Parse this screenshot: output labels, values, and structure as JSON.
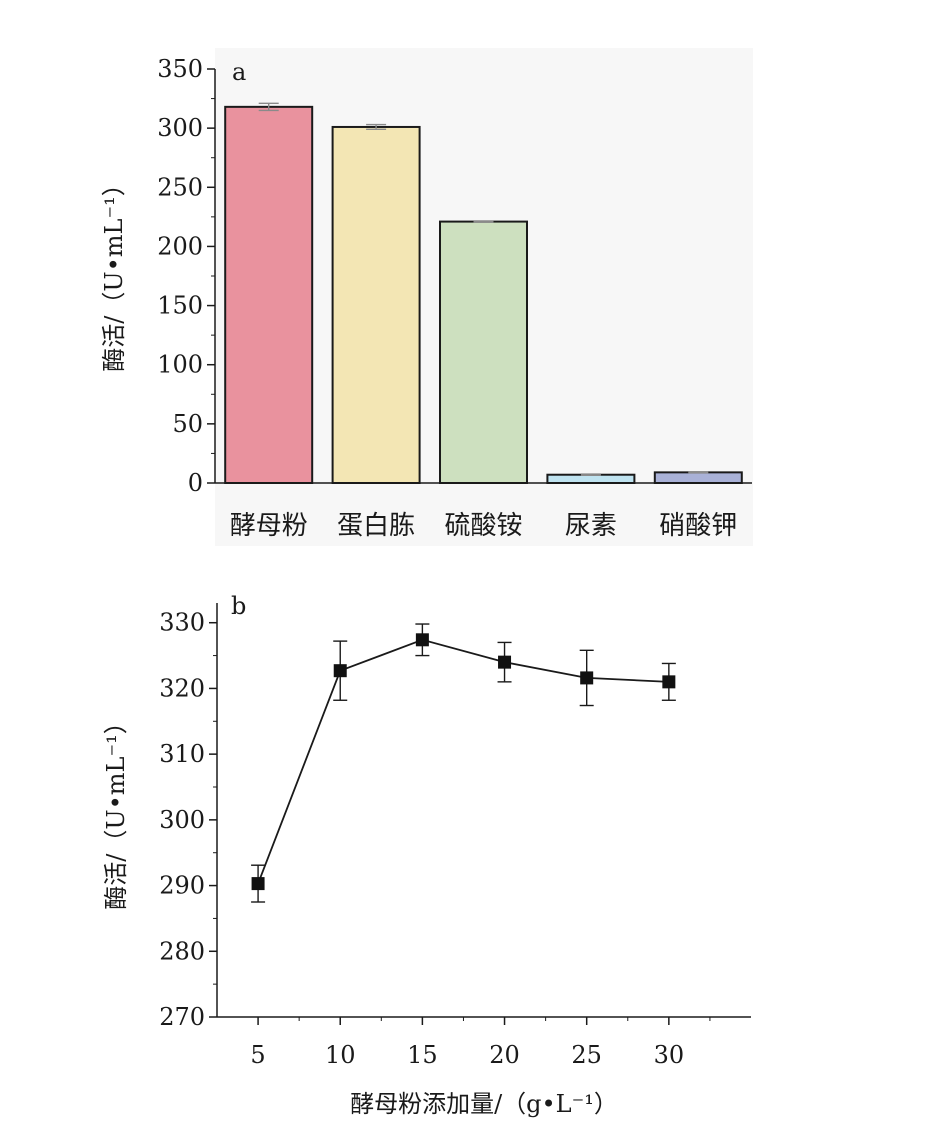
{
  "chart_data": [
    {
      "type": "bar",
      "panel_label": "a",
      "title": "",
      "xlabel": "",
      "ylabel": "酶活/（U•mL⁻¹）",
      "ylim": [
        0,
        350
      ],
      "yticks": [
        0,
        50,
        100,
        150,
        200,
        250,
        300,
        350
      ],
      "categories": [
        "酵母粉",
        "蛋白胨",
        "硫酸铵",
        "尿素",
        "硝酸钾"
      ],
      "values": [
        318,
        301,
        221,
        7,
        9
      ],
      "errors": [
        3,
        2,
        0.5,
        0.5,
        0.5
      ],
      "bar_colors": [
        "#e9929e",
        "#f3e6b4",
        "#cde0bf",
        "#bfe3f0",
        "#a9b1d7"
      ],
      "grid": false
    },
    {
      "type": "line",
      "panel_label": "b",
      "title": "",
      "xlabel": "酵母粉添加量/（g•L⁻¹）",
      "ylabel": "酶活/（U•mL⁻¹）",
      "xlim": [
        2.5,
        35
      ],
      "ylim": [
        270,
        333
      ],
      "xticks": [
        5,
        10,
        15,
        20,
        25,
        30
      ],
      "yticks": [
        270,
        280,
        290,
        300,
        310,
        320,
        330
      ],
      "x": [
        5,
        10,
        15,
        20,
        25,
        30
      ],
      "y": [
        290.3,
        322.7,
        327.4,
        324.0,
        321.6,
        321.0
      ],
      "errors": [
        2.8,
        4.5,
        2.4,
        3.0,
        4.2,
        2.8
      ],
      "marker": "square",
      "grid": false
    }
  ]
}
